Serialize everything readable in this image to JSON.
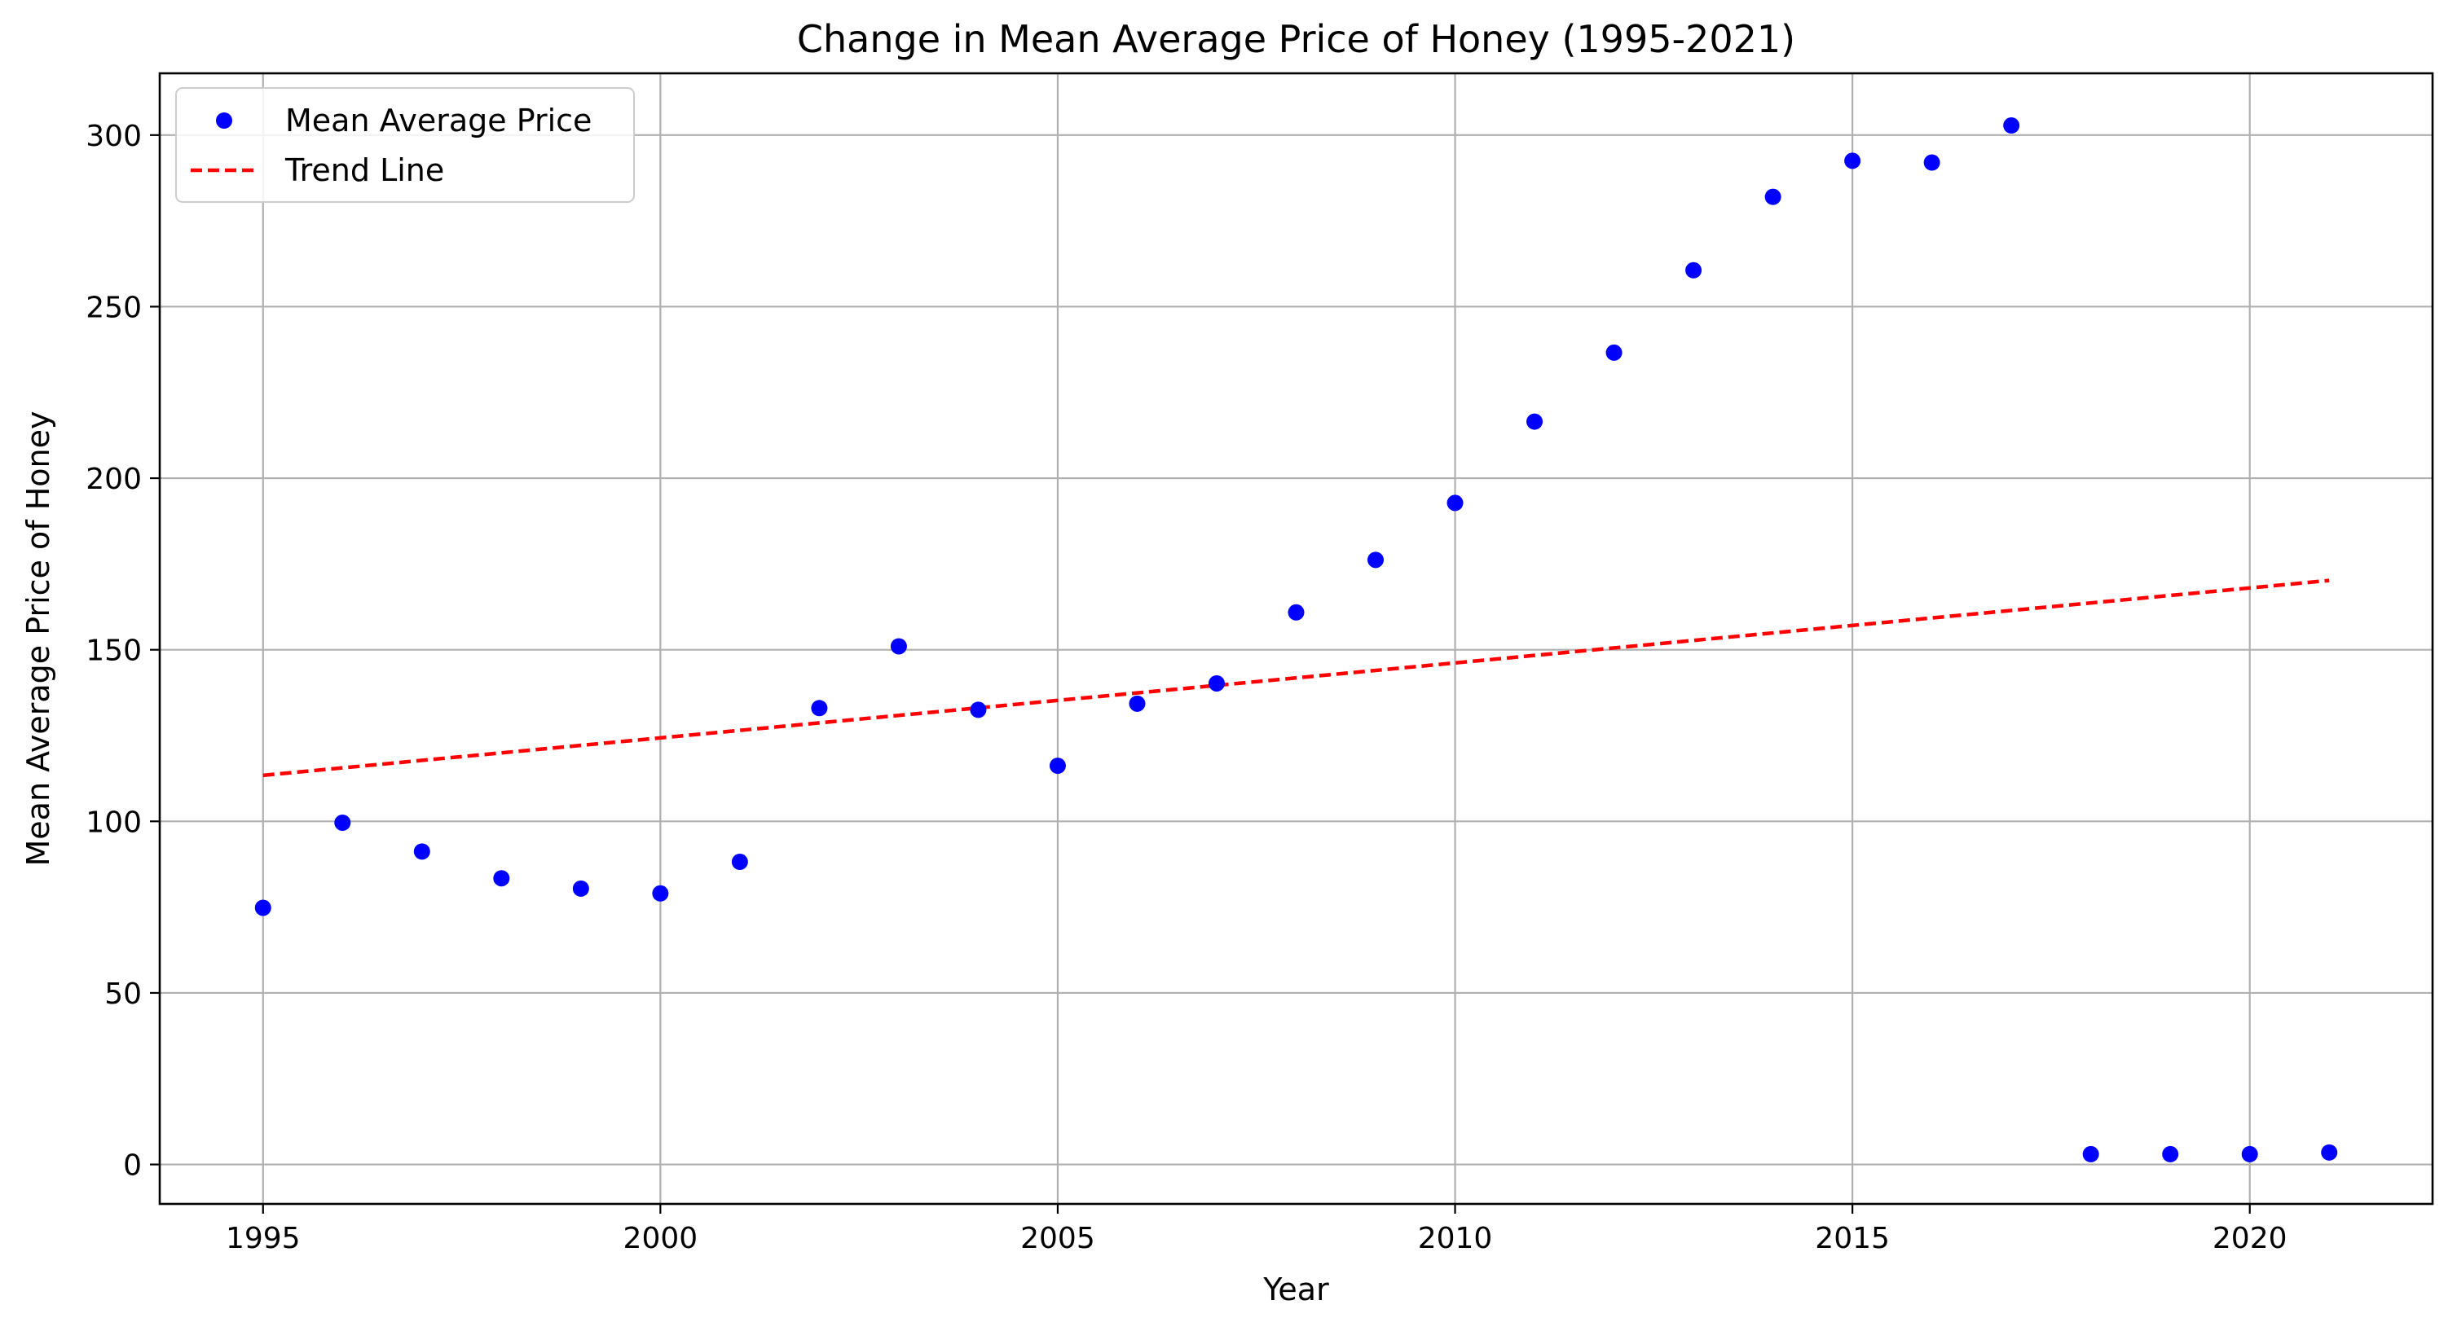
{
  "chart_data": {
    "type": "scatter",
    "title": "Change in Mean Average Price of Honey (1995-2021)",
    "xlabel": "Year",
    "ylabel": "Mean Average Price of Honey",
    "xlim": [
      1993.7,
      2022.3
    ],
    "ylim": [
      -11.5,
      318
    ],
    "xticks": [
      1995,
      2000,
      2005,
      2010,
      2015,
      2020
    ],
    "yticks": [
      0,
      50,
      100,
      150,
      200,
      250,
      300
    ],
    "grid": true,
    "legend_position": "upper-left",
    "series": [
      {
        "name": "Mean Average Price",
        "kind": "scatter",
        "color": "#0000ff",
        "x": [
          1995,
          1996,
          1997,
          1998,
          1999,
          2000,
          2001,
          2002,
          2003,
          2004,
          2005,
          2006,
          2007,
          2008,
          2009,
          2010,
          2011,
          2012,
          2013,
          2014,
          2015,
          2016,
          2017,
          2018,
          2019,
          2020,
          2021
        ],
        "y": [
          74.8,
          99.6,
          91.2,
          83.4,
          80.4,
          79.0,
          88.2,
          133.0,
          151.0,
          132.5,
          116.2,
          134.3,
          140.2,
          160.9,
          176.2,
          192.8,
          216.5,
          236.6,
          260.6,
          282.0,
          292.5,
          292.0,
          302.8,
          3.0,
          3.0,
          3.0,
          3.5
        ]
      },
      {
        "name": "Trend Line",
        "kind": "line",
        "style": "dashed",
        "color": "#ff0000",
        "x": [
          1995,
          2021
        ],
        "y": [
          113.4,
          170.2
        ]
      }
    ]
  }
}
